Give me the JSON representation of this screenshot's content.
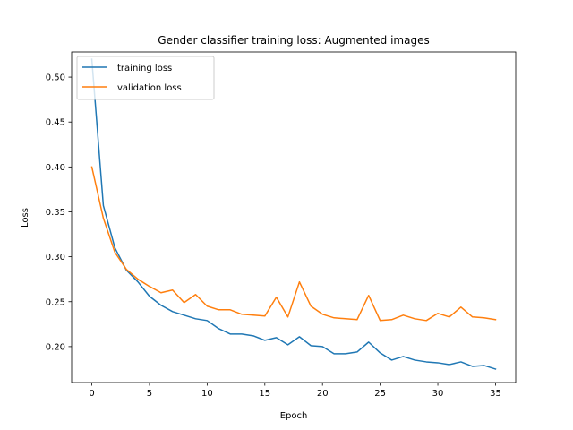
{
  "chart_data": {
    "type": "line",
    "title": "Gender classifier training loss: Augmented images",
    "xlabel": "Epoch",
    "ylabel": "Loss",
    "xlim": [
      -1.75,
      36.75
    ],
    "ylim": [
      0.16,
      0.528
    ],
    "xticks": [
      0,
      5,
      10,
      15,
      20,
      25,
      30,
      35
    ],
    "yticks": [
      0.2,
      0.25,
      0.3,
      0.35,
      0.4,
      0.45,
      0.5
    ],
    "ytick_labels": [
      "0.20",
      "0.25",
      "0.30",
      "0.35",
      "0.40",
      "0.45",
      "0.50"
    ],
    "grid": false,
    "legend_position": "upper-left",
    "x": [
      0,
      1,
      2,
      3,
      4,
      5,
      6,
      7,
      8,
      9,
      10,
      11,
      12,
      13,
      14,
      15,
      16,
      17,
      18,
      19,
      20,
      21,
      22,
      23,
      24,
      25,
      26,
      27,
      28,
      29,
      30,
      31,
      32,
      33,
      34,
      35
    ],
    "series": [
      {
        "name": "training loss",
        "color": "#1f77b4",
        "values": [
          0.52,
          0.357,
          0.31,
          0.285,
          0.272,
          0.256,
          0.246,
          0.239,
          0.235,
          0.231,
          0.229,
          0.22,
          0.214,
          0.214,
          0.212,
          0.207,
          0.21,
          0.202,
          0.211,
          0.201,
          0.2,
          0.192,
          0.192,
          0.194,
          0.205,
          0.193,
          0.185,
          0.189,
          0.185,
          0.183,
          0.182,
          0.18,
          0.183,
          0.178,
          0.179,
          0.175
        ]
      },
      {
        "name": "validation loss",
        "color": "#ff7f0e",
        "values": [
          0.4,
          0.343,
          0.305,
          0.286,
          0.275,
          0.267,
          0.26,
          0.263,
          0.249,
          0.258,
          0.245,
          0.241,
          0.241,
          0.236,
          0.235,
          0.234,
          0.255,
          0.233,
          0.272,
          0.245,
          0.236,
          0.232,
          0.231,
          0.23,
          0.257,
          0.229,
          0.23,
          0.235,
          0.231,
          0.229,
          0.237,
          0.233,
          0.244,
          0.233,
          0.232,
          0.23
        ]
      }
    ]
  }
}
